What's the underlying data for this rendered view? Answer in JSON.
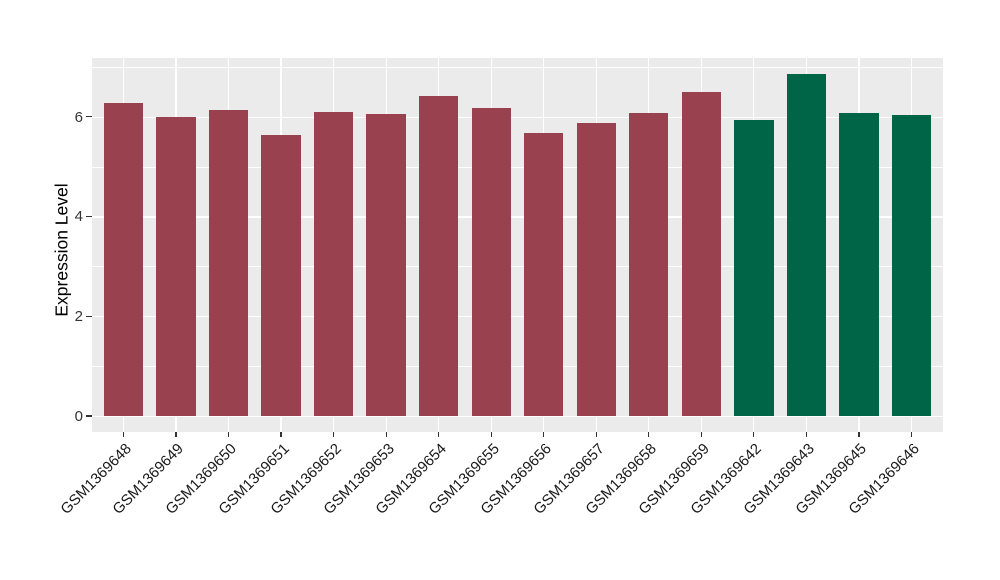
{
  "chart_data": {
    "type": "bar",
    "title": "",
    "xlabel": "",
    "ylabel": "Expression Level",
    "ylim": [
      -0.35,
      7.17
    ],
    "yticks": [
      0,
      2,
      4,
      6
    ],
    "yticks_minor": [
      1,
      3,
      5,
      7
    ],
    "grid": true,
    "legend": "none",
    "panel_background": "#EBEBEB",
    "gridline_color": "#FFFFFF",
    "tick_color": "#333333",
    "categories": [
      "GSM1369648",
      "GSM1369649",
      "GSM1369650",
      "GSM1369651",
      "GSM1369652",
      "GSM1369653",
      "GSM1369654",
      "GSM1369655",
      "GSM1369656",
      "GSM1369657",
      "GSM1369658",
      "GSM1369659",
      "GSM1369642",
      "GSM1369643",
      "GSM1369645",
      "GSM1369646"
    ],
    "values": [
      6.27,
      6.0,
      6.13,
      5.63,
      6.09,
      6.06,
      6.42,
      6.17,
      5.68,
      5.87,
      6.08,
      6.49,
      5.93,
      6.85,
      6.08,
      6.04
    ],
    "groups": [
      "maroon",
      "maroon",
      "maroon",
      "maroon",
      "maroon",
      "maroon",
      "maroon",
      "maroon",
      "maroon",
      "maroon",
      "maroon",
      "maroon",
      "green",
      "green",
      "green",
      "green"
    ],
    "group_colors": {
      "maroon": "#9A4150",
      "green": "#006546"
    }
  }
}
